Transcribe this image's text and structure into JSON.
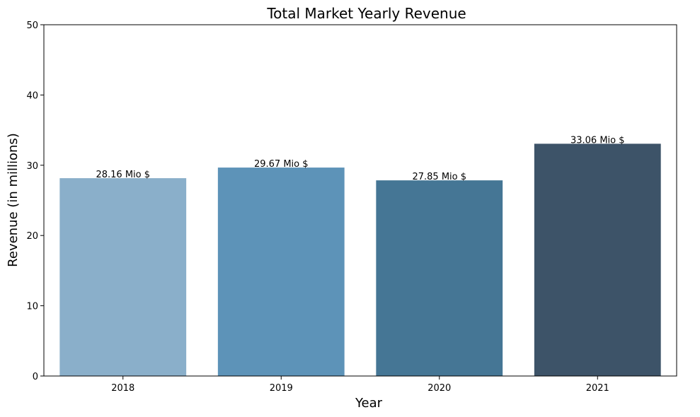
{
  "chart_data": {
    "type": "bar",
    "title": "Total Market Yearly Revenue",
    "xlabel": "Year",
    "ylabel": "Revenue (in millions)",
    "categories": [
      "2018",
      "2019",
      "2020",
      "2021"
    ],
    "values": [
      28.16,
      29.67,
      27.85,
      33.06
    ],
    "data_labels": [
      "28.16 Mio $",
      "29.67 Mio $",
      "27.85 Mio $",
      "33.06 Mio $"
    ],
    "bar_colors": [
      "#8AAFCA",
      "#5D93B8",
      "#457695",
      "#3D5368"
    ],
    "ylim": [
      0,
      50
    ],
    "yticks": [
      0,
      10,
      20,
      30,
      40,
      50
    ],
    "grid": false,
    "legend": "none"
  }
}
